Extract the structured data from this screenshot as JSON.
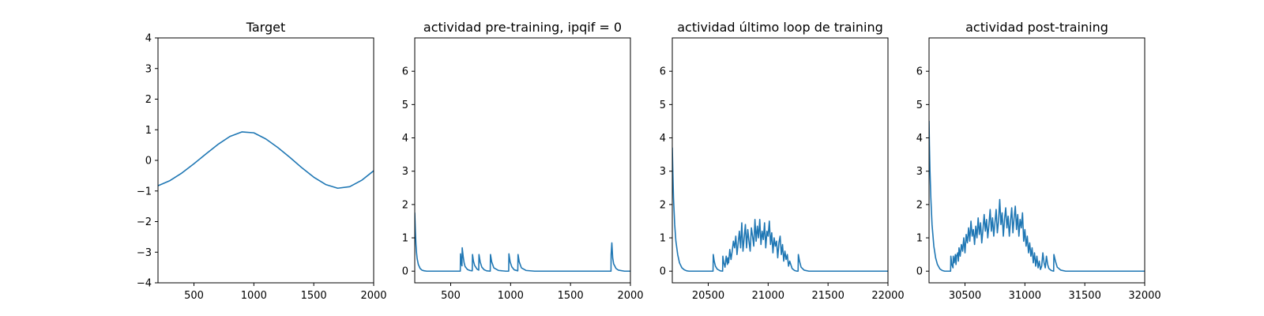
{
  "chart_data": [
    {
      "type": "line",
      "title": "Target",
      "xlim": [
        200,
        2000
      ],
      "ylim": [
        -4,
        4
      ],
      "xticks": [
        500,
        1000,
        1500,
        2000
      ],
      "yticks": [
        -4,
        -3,
        -2,
        -1,
        0,
        1,
        2,
        3,
        4
      ],
      "xtick_labels": [
        "500",
        "1000",
        "1500",
        "2000"
      ],
      "ytick_labels": [
        "−4",
        "−3",
        "−2",
        "−1",
        "0",
        "1",
        "2",
        "3",
        "4"
      ],
      "series": [
        {
          "color": "#1f77b4",
          "x": [
            200,
            300,
            400,
            500,
            600,
            700,
            800,
            900,
            1000,
            1100,
            1200,
            1300,
            1400,
            1500,
            1600,
            1700,
            1800,
            1900,
            2000
          ],
          "y": [
            -0.83,
            -0.66,
            -0.41,
            -0.11,
            0.21,
            0.52,
            0.78,
            0.93,
            0.9,
            0.7,
            0.42,
            0.1,
            -0.24,
            -0.55,
            -0.79,
            -0.91,
            -0.86,
            -0.65,
            -0.34
          ]
        }
      ]
    },
    {
      "type": "line",
      "title": "actividad pre-training, ipqif = 0",
      "xlim": [
        200,
        2000
      ],
      "ylim": [
        -0.35,
        7.0
      ],
      "xticks": [
        500,
        1000,
        1500,
        2000
      ],
      "yticks": [
        0,
        1,
        2,
        3,
        4,
        5,
        6
      ],
      "xtick_labels": [
        "500",
        "1000",
        "1500",
        "2000"
      ],
      "ytick_labels": [
        "0",
        "1",
        "2",
        "3",
        "4",
        "5",
        "6"
      ],
      "series": [
        {
          "color": "#1f77b4",
          "x": [
            200,
            205,
            210,
            215,
            220,
            230,
            245,
            260,
            280,
            300,
            580,
            582,
            588,
            594,
            596,
            604,
            612,
            620,
            640,
            660,
            680,
            682,
            690,
            700,
            720,
            734,
            736,
            746,
            760,
            780,
            800,
            830,
            832,
            842,
            860,
            900,
            960,
            984,
            986,
            996,
            1010,
            1030,
            1060,
            1062,
            1072,
            1090,
            1130,
            1200,
            1500,
            1838,
            1839,
            1845,
            1852,
            1860,
            1880,
            1900,
            1950,
            2000
          ],
          "y": [
            1.75,
            1.2,
            0.8,
            0.55,
            0.38,
            0.2,
            0.08,
            0.03,
            0.01,
            0.0,
            0.0,
            0.52,
            0.28,
            0.16,
            0.7,
            0.45,
            0.25,
            0.14,
            0.05,
            0.02,
            0.01,
            0.5,
            0.3,
            0.17,
            0.06,
            0.03,
            0.5,
            0.28,
            0.12,
            0.04,
            0.01,
            0.0,
            0.5,
            0.28,
            0.1,
            0.02,
            0.0,
            0.0,
            0.52,
            0.28,
            0.13,
            0.04,
            0.01,
            0.5,
            0.28,
            0.1,
            0.02,
            0.0,
            0.0,
            0.0,
            0.5,
            0.85,
            0.4,
            0.22,
            0.08,
            0.03,
            0.0,
            0.0
          ]
        }
      ]
    },
    {
      "type": "line",
      "title": "actividad último loop de training",
      "xlim": [
        20200,
        22000
      ],
      "ylim": [
        -0.35,
        7.0
      ],
      "xticks": [
        20500,
        21000,
        21500,
        22000
      ],
      "yticks": [
        0,
        1,
        2,
        3,
        4,
        5,
        6
      ],
      "xtick_labels": [
        "20500",
        "21000",
        "21500",
        "22000"
      ],
      "ytick_labels": [
        "0",
        "1",
        "2",
        "3",
        "4",
        "5",
        "6"
      ],
      "series": [
        {
          "color": "#1f77b4",
          "x": [
            20200,
            20205,
            20210,
            20220,
            20230,
            20245,
            20260,
            20280,
            20300,
            20320,
            20340,
            20540,
            20542,
            20550,
            20560,
            20575,
            20600,
            20620,
            20622,
            20630,
            20640,
            20650,
            20660,
            20665,
            20670,
            20680,
            20690,
            20700,
            20710,
            20720,
            20730,
            20740,
            20750,
            20760,
            20770,
            20780,
            20790,
            20800,
            20810,
            20820,
            20830,
            20840,
            20850,
            20860,
            20870,
            20880,
            20890,
            20900,
            20910,
            20920,
            20930,
            20940,
            20950,
            20960,
            20970,
            20980,
            20990,
            21000,
            21010,
            21020,
            21030,
            21040,
            21050,
            21060,
            21070,
            21080,
            21090,
            21100,
            21110,
            21120,
            21130,
            21140,
            21150,
            21160,
            21170,
            21180,
            21200,
            21220,
            21240,
            21250,
            21252,
            21262,
            21275,
            21300,
            21340,
            21400,
            22000
          ],
          "y": [
            3.7,
            2.9,
            2.2,
            1.4,
            0.9,
            0.5,
            0.25,
            0.1,
            0.04,
            0.01,
            0.0,
            0.0,
            0.5,
            0.3,
            0.15,
            0.06,
            0.01,
            0.0,
            0.45,
            0.25,
            0.12,
            0.45,
            0.2,
            0.4,
            0.25,
            0.65,
            0.35,
            0.6,
            0.9,
            0.7,
            1.05,
            0.5,
            0.85,
            1.2,
            0.7,
            1.45,
            0.6,
            1.0,
            1.4,
            0.7,
            1.25,
            0.9,
            0.6,
            1.3,
            1.05,
            0.75,
            1.55,
            0.9,
            1.35,
            1.0,
            1.55,
            0.8,
            1.2,
            0.95,
            1.45,
            0.7,
            1.2,
            1.05,
            1.5,
            0.8,
            1.15,
            0.55,
            1.0,
            0.75,
            0.9,
            0.4,
            0.85,
            1.05,
            0.5,
            0.8,
            0.3,
            0.6,
            0.35,
            0.5,
            0.15,
            0.3,
            0.08,
            0.02,
            0.0,
            0.0,
            0.5,
            0.3,
            0.12,
            0.03,
            0.0,
            0.0,
            0.0
          ]
        }
      ]
    },
    {
      "type": "line",
      "title": "actividad post-training",
      "xlim": [
        30200,
        32000
      ],
      "ylim": [
        -0.35,
        7.0
      ],
      "xticks": [
        30500,
        31000,
        31500,
        32000
      ],
      "yticks": [
        0,
        1,
        2,
        3,
        4,
        5,
        6
      ],
      "xtick_labels": [
        "30500",
        "31000",
        "31500",
        "32000"
      ],
      "ytick_labels": [
        "0",
        "1",
        "2",
        "3",
        "4",
        "5",
        "6"
      ],
      "series": [
        {
          "color": "#1f77b4",
          "x": [
            30200,
            30203,
            30208,
            30215,
            30225,
            30240,
            30255,
            30270,
            30290,
            30310,
            30330,
            30380,
            30382,
            30390,
            30400,
            30402,
            30410,
            30420,
            30425,
            30430,
            30440,
            30445,
            30450,
            30460,
            30470,
            30480,
            30490,
            30500,
            30510,
            30520,
            30530,
            30540,
            30550,
            30560,
            30570,
            30580,
            30590,
            30600,
            30610,
            30620,
            30630,
            30640,
            30650,
            30660,
            30670,
            30680,
            30690,
            30700,
            30710,
            30720,
            30730,
            30740,
            30750,
            30760,
            30770,
            30780,
            30790,
            30800,
            30810,
            30820,
            30830,
            30840,
            30850,
            30860,
            30870,
            30880,
            30890,
            30900,
            30910,
            30920,
            30930,
            30940,
            30950,
            30960,
            30970,
            30980,
            30990,
            31000,
            31010,
            31020,
            31030,
            31040,
            31050,
            31060,
            31070,
            31080,
            31090,
            31100,
            31110,
            31120,
            31130,
            31140,
            31150,
            31160,
            31170,
            31180,
            31190,
            31200,
            31220,
            31240,
            31242,
            31255,
            31270,
            31300,
            31340,
            31400,
            32000
          ],
          "y": [
            4.5,
            3.8,
            3.0,
            2.2,
            1.4,
            0.75,
            0.4,
            0.2,
            0.07,
            0.02,
            0.0,
            0.0,
            0.45,
            0.2,
            0.1,
            0.45,
            0.25,
            0.5,
            0.2,
            0.45,
            0.55,
            0.3,
            0.7,
            0.45,
            0.8,
            0.6,
            1.0,
            0.55,
            1.1,
            0.85,
            1.3,
            0.9,
            1.5,
            1.05,
            1.25,
            0.8,
            1.35,
            1.0,
            1.6,
            1.1,
            1.45,
            0.85,
            1.25,
            1.7,
            1.2,
            1.55,
            1.0,
            1.4,
            1.85,
            1.2,
            1.6,
            1.05,
            1.45,
            1.85,
            1.15,
            1.5,
            2.15,
            1.4,
            1.75,
            1.05,
            1.55,
            1.9,
            1.3,
            1.65,
            1.05,
            1.5,
            1.9,
            1.15,
            1.6,
            1.95,
            1.25,
            1.7,
            1.05,
            1.55,
            1.3,
            1.75,
            0.9,
            1.25,
            0.75,
            1.05,
            0.55,
            0.85,
            0.45,
            0.7,
            0.25,
            0.55,
            0.15,
            0.45,
            0.1,
            0.3,
            0.05,
            0.15,
            0.55,
            0.25,
            0.1,
            0.45,
            0.2,
            0.08,
            0.02,
            0.0,
            0.5,
            0.3,
            0.12,
            0.03,
            0.0,
            0.0,
            0.0
          ]
        }
      ]
    }
  ]
}
